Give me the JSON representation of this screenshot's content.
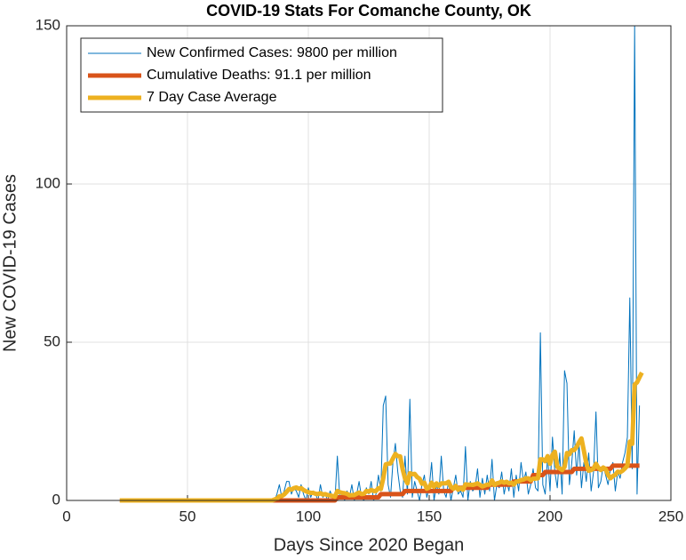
{
  "chart_data": {
    "type": "line",
    "title": "COVID-19 Stats For Comanche County, OK",
    "xlabel": "Days Since 2020 Began",
    "ylabel": "New COVID-19 Cases",
    "xlim": [
      0,
      250
    ],
    "xticks": [
      0,
      50,
      100,
      150,
      200,
      250
    ],
    "ylim": [
      0,
      150
    ],
    "yticks": [
      0,
      50,
      100,
      150
    ],
    "grid": true,
    "legend": "upper left",
    "x": [
      22,
      23,
      24,
      25,
      26,
      27,
      28,
      29,
      30,
      31,
      32,
      33,
      34,
      35,
      36,
      37,
      38,
      39,
      40,
      41,
      42,
      43,
      44,
      45,
      46,
      47,
      48,
      49,
      50,
      51,
      52,
      53,
      54,
      55,
      56,
      57,
      58,
      59,
      60,
      61,
      62,
      63,
      64,
      65,
      66,
      67,
      68,
      69,
      70,
      71,
      72,
      73,
      74,
      75,
      76,
      77,
      78,
      79,
      80,
      81,
      82,
      83,
      84,
      85,
      86,
      87,
      88,
      89,
      90,
      91,
      92,
      93,
      94,
      95,
      96,
      97,
      98,
      99,
      100,
      101,
      102,
      103,
      104,
      105,
      106,
      107,
      108,
      109,
      110,
      111,
      112,
      113,
      114,
      115,
      116,
      117,
      118,
      119,
      120,
      121,
      122,
      123,
      124,
      125,
      126,
      127,
      128,
      129,
      130,
      131,
      132,
      133,
      134,
      135,
      136,
      137,
      138,
      139,
      140,
      141,
      142,
      143,
      144,
      145,
      146,
      147,
      148,
      149,
      150,
      151,
      152,
      153,
      154,
      155,
      156,
      157,
      158,
      159,
      160,
      161,
      162,
      163,
      164,
      165,
      166,
      167,
      168,
      169,
      170,
      171,
      172,
      173,
      174,
      175,
      176,
      177,
      178,
      179,
      180,
      181,
      182,
      183,
      184,
      185,
      186,
      187,
      188,
      189,
      190,
      191,
      192,
      193,
      194,
      195,
      196,
      197,
      198,
      199,
      200,
      201,
      202,
      203,
      204,
      205,
      206,
      207,
      208,
      209,
      210,
      211,
      212,
      213,
      214,
      215,
      216,
      217,
      218,
      219,
      220,
      221,
      222,
      223,
      224,
      225,
      226,
      227,
      228,
      229,
      230,
      231,
      232,
      233,
      234,
      235,
      236,
      237,
      238
    ],
    "series": [
      {
        "name": "New Confirmed Cases: 9800 per million",
        "color": "#0072BD",
        "width": 1,
        "values": [
          0,
          0,
          0,
          0,
          0,
          0,
          0,
          0,
          0,
          0,
          0,
          0,
          0,
          0,
          0,
          0,
          0,
          0,
          0,
          0,
          0,
          0,
          0,
          0,
          0,
          0,
          0,
          0,
          0,
          0,
          0,
          0,
          0,
          0,
          0,
          0,
          0,
          0,
          0,
          0,
          0,
          0,
          0,
          0,
          0,
          0,
          0,
          0,
          0,
          0,
          0,
          0,
          0,
          0,
          0,
          0,
          0,
          0,
          0,
          0,
          0,
          0,
          0,
          0,
          0,
          2,
          5,
          1,
          3,
          6,
          6,
          2,
          4,
          3,
          1,
          5,
          2,
          0,
          4,
          1,
          3,
          2,
          0,
          5,
          1,
          2,
          0,
          3,
          1,
          0,
          14,
          1,
          2,
          0,
          3,
          1,
          5,
          0,
          2,
          6,
          1,
          0,
          4,
          2,
          6,
          0,
          2,
          8,
          3,
          30,
          33,
          5,
          1,
          12,
          18,
          9,
          3,
          1,
          14,
          2,
          32,
          1,
          6,
          3,
          0,
          5,
          8,
          1,
          4,
          12,
          0,
          5,
          2,
          14,
          3,
          1,
          6,
          0,
          4,
          8,
          2,
          3,
          1,
          17,
          0,
          6,
          3,
          4,
          10,
          1,
          7,
          2,
          8,
          3,
          13,
          0,
          5,
          4,
          9,
          2,
          6,
          3,
          10,
          1,
          8,
          3,
          12,
          6,
          9,
          2,
          5,
          10,
          4,
          3,
          53,
          5,
          2,
          14,
          3,
          20,
          9,
          4,
          15,
          2,
          41,
          37,
          5,
          12,
          22,
          8,
          18,
          4,
          12,
          6,
          15,
          3,
          9,
          28,
          4,
          6,
          11,
          8,
          5,
          10,
          12,
          3,
          9,
          7,
          12,
          15,
          20,
          64,
          10,
          150,
          2,
          30,
          null
        ]
      },
      {
        "name": "Cumulative Deaths: 91.1 per million",
        "color": "#D95319",
        "width": 5,
        "values": [
          0,
          0,
          0,
          0,
          0,
          0,
          0,
          0,
          0,
          0,
          0,
          0,
          0,
          0,
          0,
          0,
          0,
          0,
          0,
          0,
          0,
          0,
          0,
          0,
          0,
          0,
          0,
          0,
          0,
          0,
          0,
          0,
          0,
          0,
          0,
          0,
          0,
          0,
          0,
          0,
          0,
          0,
          0,
          0,
          0,
          0,
          0,
          0,
          0,
          0,
          0,
          0,
          0,
          0,
          0,
          0,
          0,
          0,
          0,
          0,
          0,
          0,
          0,
          0,
          0,
          0,
          0,
          0,
          0,
          0,
          0,
          0,
          0,
          0,
          0,
          0,
          0,
          0,
          0,
          0,
          0,
          0,
          0,
          0,
          0,
          0,
          0,
          0,
          0,
          0,
          1,
          1,
          1,
          1,
          1,
          1,
          1,
          1,
          1,
          1,
          1,
          1,
          1,
          1,
          1,
          1,
          1,
          1,
          2,
          2,
          2,
          2,
          2,
          2,
          2,
          2,
          2,
          2,
          3,
          3,
          3,
          3,
          3,
          3,
          3,
          3,
          3,
          3,
          3,
          3,
          3,
          3,
          3,
          3,
          3,
          3,
          3,
          3,
          4,
          4,
          4,
          4,
          4,
          4,
          4,
          4,
          4,
          4,
          4,
          4,
          4,
          4,
          4,
          5,
          5,
          5,
          5,
          5,
          5,
          5,
          5,
          5,
          5,
          6,
          6,
          6,
          6,
          6,
          6,
          6,
          6,
          8,
          8,
          8,
          8,
          8,
          9,
          9,
          9,
          9,
          9,
          9,
          9,
          9,
          9,
          9,
          9,
          9,
          10,
          10,
          10,
          10,
          10,
          10,
          10,
          10,
          10,
          10,
          10,
          10,
          10,
          10,
          10,
          10,
          11,
          11,
          11,
          11,
          11,
          11,
          11,
          11,
          11,
          11,
          11,
          11,
          null
        ]
      },
      {
        "name": "7 Day Case Average",
        "color": "#EDB120",
        "width": 5,
        "values": [
          0,
          0,
          0,
          0,
          0,
          0,
          0,
          0,
          0,
          0,
          0,
          0,
          0,
          0,
          0,
          0,
          0,
          0,
          0,
          0,
          0,
          0,
          0,
          0,
          0,
          0,
          0,
          0,
          0,
          0,
          0,
          0,
          0,
          0,
          0,
          0,
          0,
          0,
          0,
          0,
          0,
          0,
          0,
          0,
          0,
          0,
          0,
          0,
          0,
          0,
          0,
          0,
          0,
          0,
          0,
          0,
          0,
          0,
          0,
          0,
          0,
          0,
          0,
          0,
          0.3,
          0.6,
          1.3,
          1.4,
          1.9,
          2.7,
          3.6,
          3.4,
          3.9,
          4.1,
          3.7,
          3.9,
          3.3,
          2.9,
          2.6,
          2.4,
          2.4,
          2.1,
          2.0,
          2.3,
          1.9,
          2.0,
          1.7,
          1.6,
          1.4,
          1.2,
          3.0,
          2.6,
          2.4,
          2.3,
          2.1,
          1.6,
          1.7,
          1.7,
          2.1,
          2.5,
          2.0,
          2.1,
          3.0,
          2.8,
          3.3,
          3.0,
          3.0,
          3.9,
          3.6,
          7.0,
          11.4,
          11.6,
          11.7,
          13.3,
          14.7,
          14.0,
          13.9,
          9.9,
          6.9,
          5.4,
          8.6,
          8.3,
          8.4,
          7.4,
          6.9,
          5.3,
          5.6,
          3.7,
          4.1,
          5.6,
          4.3,
          5.4,
          4.6,
          5.4,
          5.4,
          5.4,
          5.9,
          4.3,
          3.7,
          4.6,
          3.4,
          3.9,
          3.4,
          5.1,
          5.0,
          5.0,
          4.9,
          5.1,
          5.4,
          4.9,
          4.4,
          4.7,
          5.0,
          5.0,
          6.3,
          4.9,
          5.4,
          5.6,
          6.0,
          5.6,
          5.9,
          5.4,
          5.6,
          5.0,
          5.9,
          6.1,
          6.4,
          6.6,
          7.0,
          7.0,
          6.4,
          6.9,
          6.9,
          7.0,
          13.0,
          13.0,
          12.4,
          14.0,
          11.6,
          14.4,
          15.4,
          10.6,
          10.1,
          9.6,
          10.6,
          15.0,
          14.6,
          15.9,
          15.9,
          16.9,
          18.4,
          19.6,
          15.7,
          11.7,
          9.4,
          9.6,
          10.1,
          11.6,
          10.3,
          9.6,
          10.4,
          9.9,
          8.1,
          7.0,
          7.7,
          8.1,
          9.1,
          8.9,
          9.4,
          10.1,
          11.0,
          18.6,
          17.9,
          36.6,
          37.3,
          38.9,
          40.4
        ]
      }
    ]
  }
}
